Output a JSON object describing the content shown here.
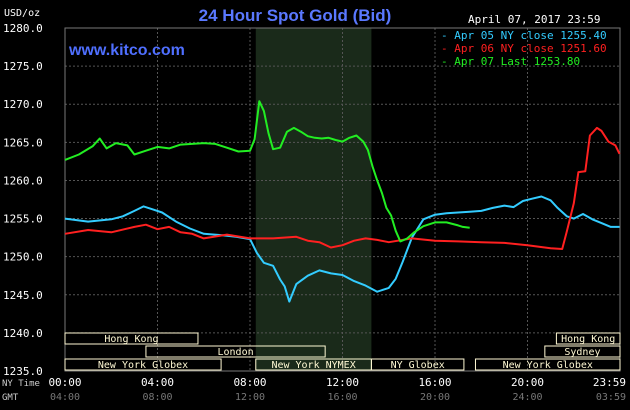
{
  "chart_data": {
    "type": "line",
    "title": "24 Hour Spot Gold (Bid)",
    "date": "April 07, 2017 23:59",
    "ylabel": "USD/oz",
    "watermark": "www.kitco.com",
    "ylim": [
      1235.0,
      1280.0
    ],
    "yticks": [
      "1280.0",
      "1275.0",
      "1270.0",
      "1265.0",
      "1260.0",
      "1255.0",
      "1250.0",
      "1245.0",
      "1240.0",
      "1235.0"
    ],
    "x_axes": [
      {
        "label": "NY Time",
        "ticks": [
          "00:00",
          "04:00",
          "08:00",
          "12:00",
          "16:00",
          "20:00",
          "23:59"
        ]
      },
      {
        "label": "GMT",
        "ticks": [
          "04:00",
          "08:00",
          "12:00",
          "16:00",
          "20:00",
          "24:00",
          "03:59"
        ]
      }
    ],
    "legend_position": "top-right",
    "sessions": [
      {
        "label": "Hong Kong",
        "start": 0.0,
        "end": 5.75,
        "row": 0
      },
      {
        "label": "Hong Kong",
        "start": 21.25,
        "end": 24.0,
        "row": 0
      },
      {
        "label": "London",
        "start": 3.5,
        "end": 11.25,
        "row": 1
      },
      {
        "label": "Sydney",
        "start": 20.75,
        "end": 24.0,
        "row": 1
      },
      {
        "label": "New York Globex",
        "start": 0.0,
        "end": 6.75,
        "row": 2
      },
      {
        "label": "New York NYMEX",
        "start": 8.25,
        "end": 13.25,
        "row": 2
      },
      {
        "label": "NY Globex",
        "start": 13.25,
        "end": 17.25,
        "row": 2
      },
      {
        "label": "New York Globex",
        "start": 17.75,
        "end": 24.0,
        "row": 2
      }
    ],
    "shade_x": [
      8.25,
      13.25
    ],
    "colors": {
      "background": "#000000",
      "grid": "#555555",
      "text": "#ffffff",
      "title": "#5a78ff",
      "axis_label": "#cccccc",
      "shade": "#1a2a1a",
      "session_fill": "#fff9d4",
      "session_text": "#333333"
    },
    "series": [
      {
        "name": "Apr 05 NY close 1255.40",
        "color": "#33ccff",
        "points": [
          [
            0,
            1255.0
          ],
          [
            1,
            1254.6
          ],
          [
            2,
            1254.9
          ],
          [
            2.5,
            1255.3
          ],
          [
            3,
            1256.0
          ],
          [
            3.4,
            1256.6
          ],
          [
            3.8,
            1256.2
          ],
          [
            4.2,
            1255.8
          ],
          [
            4.8,
            1254.6
          ],
          [
            5.4,
            1253.7
          ],
          [
            6,
            1253.0
          ],
          [
            6.8,
            1252.8
          ],
          [
            7.4,
            1252.6
          ],
          [
            8,
            1252.3
          ],
          [
            8.3,
            1250.5
          ],
          [
            8.6,
            1249.2
          ],
          [
            9,
            1248.8
          ],
          [
            9.3,
            1247.0
          ],
          [
            9.5,
            1246.1
          ],
          [
            9.7,
            1244.1
          ],
          [
            10,
            1246.4
          ],
          [
            10.5,
            1247.5
          ],
          [
            11,
            1248.2
          ],
          [
            11.5,
            1247.8
          ],
          [
            12,
            1247.6
          ],
          [
            12.5,
            1246.8
          ],
          [
            13,
            1246.2
          ],
          [
            13.5,
            1245.4
          ],
          [
            14,
            1245.9
          ],
          [
            14.3,
            1247.1
          ],
          [
            14.6,
            1249.3
          ],
          [
            15,
            1252.5
          ],
          [
            15.5,
            1254.9
          ],
          [
            16,
            1255.5
          ],
          [
            16.5,
            1255.7
          ],
          [
            17,
            1255.8
          ],
          [
            17.5,
            1255.9
          ],
          [
            18,
            1256.0
          ],
          [
            18.5,
            1256.4
          ],
          [
            19,
            1256.7
          ],
          [
            19.4,
            1256.5
          ],
          [
            19.8,
            1257.3
          ],
          [
            20.2,
            1257.6
          ],
          [
            20.6,
            1257.9
          ],
          [
            21,
            1257.4
          ],
          [
            21.3,
            1256.4
          ],
          [
            21.7,
            1255.3
          ],
          [
            22,
            1255.0
          ],
          [
            22.4,
            1255.6
          ],
          [
            22.8,
            1254.9
          ],
          [
            23.2,
            1254.4
          ],
          [
            23.6,
            1253.9
          ],
          [
            23.98,
            1253.9
          ]
        ]
      },
      {
        "name": "Apr 06 NY close 1251.60",
        "color": "#ff2020",
        "points": [
          [
            0,
            1253.0
          ],
          [
            1,
            1253.5
          ],
          [
            2,
            1253.2
          ],
          [
            3,
            1253.9
          ],
          [
            3.5,
            1254.2
          ],
          [
            4,
            1253.6
          ],
          [
            4.5,
            1253.9
          ],
          [
            5,
            1253.2
          ],
          [
            5.5,
            1253.0
          ],
          [
            6,
            1252.4
          ],
          [
            7,
            1252.9
          ],
          [
            8,
            1252.4
          ],
          [
            9,
            1252.4
          ],
          [
            10,
            1252.6
          ],
          [
            10.5,
            1252.1
          ],
          [
            11,
            1251.9
          ],
          [
            11.5,
            1251.2
          ],
          [
            12,
            1251.5
          ],
          [
            12.5,
            1252.1
          ],
          [
            13,
            1252.4
          ],
          [
            13.5,
            1252.2
          ],
          [
            14,
            1251.9
          ],
          [
            15,
            1252.4
          ],
          [
            16,
            1252.1
          ],
          [
            17,
            1252.0
          ],
          [
            18,
            1251.9
          ],
          [
            19,
            1251.8
          ],
          [
            20,
            1251.5
          ],
          [
            21,
            1251.1
          ],
          [
            21.5,
            1251.0
          ],
          [
            21.7,
            1253.3
          ],
          [
            22,
            1257.0
          ],
          [
            22.2,
            1261.1
          ],
          [
            22.5,
            1261.2
          ],
          [
            22.7,
            1265.9
          ],
          [
            23,
            1266.9
          ],
          [
            23.2,
            1266.5
          ],
          [
            23.5,
            1265.1
          ],
          [
            23.8,
            1264.6
          ],
          [
            23.98,
            1263.5
          ]
        ]
      },
      {
        "name": "Apr 07 Last 1253.80",
        "color": "#22ee22",
        "points": [
          [
            0,
            1262.7
          ],
          [
            0.6,
            1263.4
          ],
          [
            1.2,
            1264.5
          ],
          [
            1.5,
            1265.5
          ],
          [
            1.8,
            1264.2
          ],
          [
            2.2,
            1264.9
          ],
          [
            2.7,
            1264.6
          ],
          [
            3,
            1263.4
          ],
          [
            3.5,
            1263.9
          ],
          [
            4,
            1264.4
          ],
          [
            4.5,
            1264.2
          ],
          [
            5,
            1264.7
          ],
          [
            5.5,
            1264.8
          ],
          [
            6,
            1264.9
          ],
          [
            6.5,
            1264.8
          ],
          [
            7,
            1264.3
          ],
          [
            7.5,
            1263.8
          ],
          [
            8,
            1263.9
          ],
          [
            8.2,
            1265.4
          ],
          [
            8.4,
            1270.4
          ],
          [
            8.6,
            1269.1
          ],
          [
            8.8,
            1266.2
          ],
          [
            9,
            1264.1
          ],
          [
            9.3,
            1264.3
          ],
          [
            9.6,
            1266.4
          ],
          [
            9.9,
            1266.9
          ],
          [
            10.2,
            1266.4
          ],
          [
            10.5,
            1265.8
          ],
          [
            10.8,
            1265.6
          ],
          [
            11.1,
            1265.5
          ],
          [
            11.4,
            1265.6
          ],
          [
            11.7,
            1265.3
          ],
          [
            12,
            1265.1
          ],
          [
            12.3,
            1265.6
          ],
          [
            12.6,
            1265.9
          ],
          [
            12.9,
            1265.1
          ],
          [
            13.1,
            1264.0
          ],
          [
            13.3,
            1261.8
          ],
          [
            13.5,
            1260.0
          ],
          [
            13.7,
            1258.4
          ],
          [
            13.9,
            1256.4
          ],
          [
            14.1,
            1255.4
          ],
          [
            14.3,
            1253.4
          ],
          [
            14.5,
            1252.0
          ],
          [
            14.8,
            1252.4
          ],
          [
            15.1,
            1253.2
          ],
          [
            15.5,
            1254.0
          ],
          [
            16,
            1254.5
          ],
          [
            16.5,
            1254.5
          ],
          [
            17,
            1254.1
          ],
          [
            17.2,
            1253.9
          ],
          [
            17.5,
            1253.8
          ]
        ]
      }
    ]
  }
}
